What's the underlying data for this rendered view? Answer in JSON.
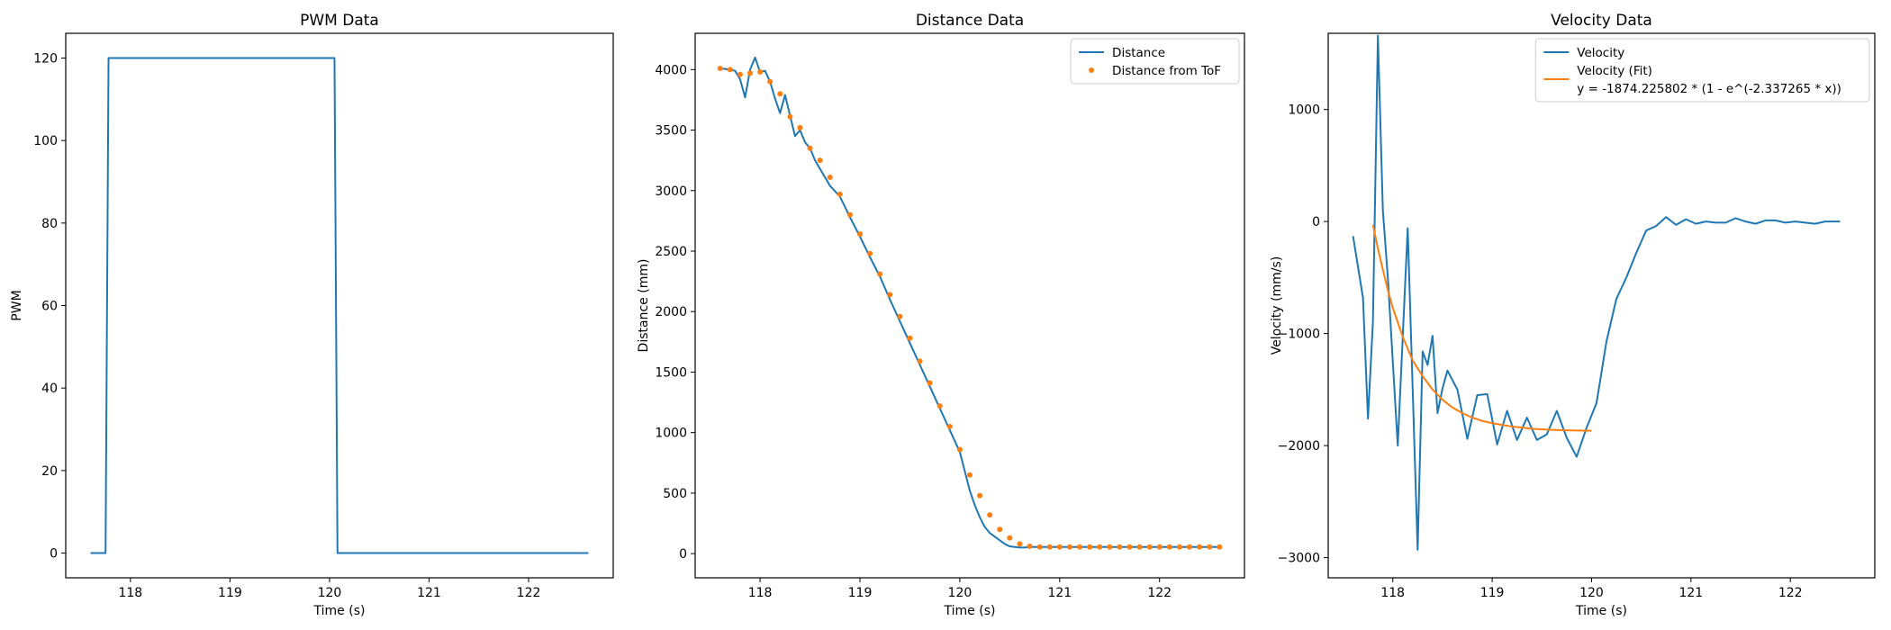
{
  "colors": {
    "blue": "#1f77b4",
    "orange": "#ff7f0e",
    "frame": "#000000",
    "legend_border": "#cccccc"
  },
  "chart_data": [
    {
      "type": "line",
      "title": "PWM Data",
      "xlabel": "Time (s)",
      "ylabel": "PWM",
      "xlim": [
        117.35,
        122.85
      ],
      "ylim": [
        -6,
        126
      ],
      "xticks": [
        118,
        119,
        120,
        121,
        122
      ],
      "yticks": [
        0,
        20,
        40,
        60,
        80,
        100,
        120
      ],
      "grid": false,
      "legend": null,
      "series": [
        {
          "name": "",
          "color": "#1f77b4",
          "style": "line",
          "x": [
            117.6,
            117.75,
            117.78,
            120.05,
            120.08,
            122.6
          ],
          "y": [
            0,
            0,
            120,
            120,
            0,
            0
          ]
        }
      ]
    },
    {
      "type": "line",
      "title": "Distance Data",
      "xlabel": "Time (s)",
      "ylabel": "Distance (mm)",
      "xlim": [
        117.35,
        122.85
      ],
      "ylim": [
        -200,
        4300
      ],
      "xticks": [
        118,
        119,
        120,
        121,
        122
      ],
      "yticks": [
        0,
        500,
        1000,
        1500,
        2000,
        2500,
        3000,
        3500,
        4000
      ],
      "grid": false,
      "legend": "upper right",
      "series": [
        {
          "name": "Distance",
          "color": "#1f77b4",
          "style": "line",
          "x": [
            117.6,
            117.65,
            117.7,
            117.75,
            117.8,
            117.85,
            117.9,
            117.95,
            118.0,
            118.05,
            118.1,
            118.15,
            118.2,
            118.25,
            118.3,
            118.35,
            118.4,
            118.45,
            118.5,
            118.55,
            118.6,
            118.65,
            118.7,
            118.8,
            118.9,
            119.0,
            119.1,
            119.2,
            119.3,
            119.4,
            119.5,
            119.6,
            119.7,
            119.8,
            119.9,
            120.0,
            120.05,
            120.1,
            120.15,
            120.2,
            120.25,
            120.3,
            120.35,
            120.4,
            120.45,
            120.5,
            120.55,
            120.6,
            120.65,
            120.7,
            120.8,
            120.9,
            121.0,
            121.2,
            121.4,
            121.6,
            121.8,
            122.0,
            122.2,
            122.4,
            122.6
          ],
          "y": [
            4010,
            4005,
            4000,
            3990,
            3920,
            3770,
            4000,
            4100,
            3980,
            3990,
            3900,
            3760,
            3640,
            3790,
            3620,
            3450,
            3500,
            3400,
            3350,
            3250,
            3180,
            3110,
            3040,
            2950,
            2780,
            2620,
            2450,
            2290,
            2100,
            1920,
            1740,
            1560,
            1380,
            1200,
            1020,
            840,
            680,
            520,
            400,
            300,
            220,
            170,
            140,
            110,
            80,
            60,
            55,
            50,
            50,
            55,
            55,
            55,
            55,
            55,
            55,
            55,
            55,
            55,
            55,
            55,
            55
          ]
        },
        {
          "name": "Distance from ToF",
          "color": "#ff7f0e",
          "style": "markers",
          "x": [
            117.6,
            117.7,
            117.8,
            117.9,
            118.0,
            118.1,
            118.2,
            118.3,
            118.4,
            118.5,
            118.6,
            118.7,
            118.8,
            118.9,
            119.0,
            119.1,
            119.2,
            119.3,
            119.4,
            119.5,
            119.6,
            119.7,
            119.8,
            119.9,
            120.0,
            120.1,
            120.2,
            120.3,
            120.4,
            120.5,
            120.6,
            120.7,
            120.8,
            120.9,
            121.0,
            121.1,
            121.2,
            121.3,
            121.4,
            121.5,
            121.6,
            121.7,
            121.8,
            121.9,
            122.0,
            122.1,
            122.2,
            122.3,
            122.4,
            122.5,
            122.6
          ],
          "y": [
            4010,
            4000,
            3960,
            3970,
            3980,
            3900,
            3800,
            3610,
            3520,
            3350,
            3250,
            3110,
            2970,
            2800,
            2640,
            2480,
            2310,
            2140,
            1960,
            1780,
            1590,
            1410,
            1220,
            1050,
            860,
            650,
            480,
            320,
            200,
            130,
            80,
            60,
            55,
            55,
            55,
            55,
            55,
            55,
            55,
            55,
            55,
            55,
            55,
            55,
            55,
            55,
            55,
            55,
            55,
            55,
            55
          ]
        }
      ]
    },
    {
      "type": "line",
      "title": "Velocity Data",
      "xlabel": "Time (s)",
      "ylabel": "Velocity (mm/s)",
      "xlim": [
        117.35,
        122.85
      ],
      "ylim": [
        -3180,
        1680
      ],
      "xticks": [
        118,
        119,
        120,
        121,
        122
      ],
      "yticks": [
        -3000,
        -2000,
        -1000,
        0,
        1000
      ],
      "grid": false,
      "legend": "upper right",
      "series": [
        {
          "name": "Velocity",
          "color": "#1f77b4",
          "style": "line",
          "x": [
            117.6,
            117.7,
            117.75,
            117.8,
            117.85,
            117.9,
            117.95,
            118.05,
            118.15,
            118.25,
            118.3,
            118.35,
            118.4,
            118.45,
            118.5,
            118.55,
            118.65,
            118.75,
            118.85,
            118.95,
            119.05,
            119.15,
            119.25,
            119.35,
            119.45,
            119.55,
            119.65,
            119.75,
            119.85,
            119.95,
            120.05,
            120.15,
            120.25,
            120.35,
            120.45,
            120.55,
            120.65,
            120.75,
            120.85,
            120.95,
            121.05,
            121.15,
            121.25,
            121.35,
            121.45,
            121.55,
            121.65,
            121.75,
            121.85,
            121.95,
            122.05,
            122.15,
            122.25,
            122.35,
            122.45,
            122.5
          ],
          "y": [
            -130,
            -680,
            -1760,
            -900,
            1660,
            100,
            -500,
            -2000,
            -60,
            -2930,
            -1160,
            -1280,
            -1020,
            -1710,
            -1490,
            -1330,
            -1500,
            -1940,
            -1550,
            -1540,
            -1990,
            -1690,
            -1950,
            -1750,
            -1950,
            -1900,
            -1690,
            -1930,
            -2100,
            -1840,
            -1620,
            -1070,
            -690,
            -500,
            -280,
            -80,
            -40,
            40,
            -30,
            20,
            -20,
            0,
            -10,
            -10,
            30,
            0,
            -20,
            10,
            10,
            -10,
            0,
            -10,
            -20,
            0,
            0,
            0
          ]
        },
        {
          "name": "Velocity (Fit)\ny = -1874.225802 * (1 - e^(-2.337265 * x))",
          "color": "#ff7f0e",
          "style": "line",
          "x": [
            117.8,
            117.85,
            117.9,
            117.95,
            118.0,
            118.1,
            118.2,
            118.3,
            118.4,
            118.5,
            118.6,
            118.7,
            118.8,
            118.9,
            119.0,
            119.2,
            119.4,
            119.6,
            119.8,
            120.0
          ],
          "y": [
            -30,
            -240,
            -430,
            -610,
            -770,
            -1030,
            -1240,
            -1380,
            -1500,
            -1590,
            -1660,
            -1710,
            -1750,
            -1780,
            -1800,
            -1830,
            -1850,
            -1860,
            -1865,
            -1868
          ]
        }
      ]
    }
  ]
}
